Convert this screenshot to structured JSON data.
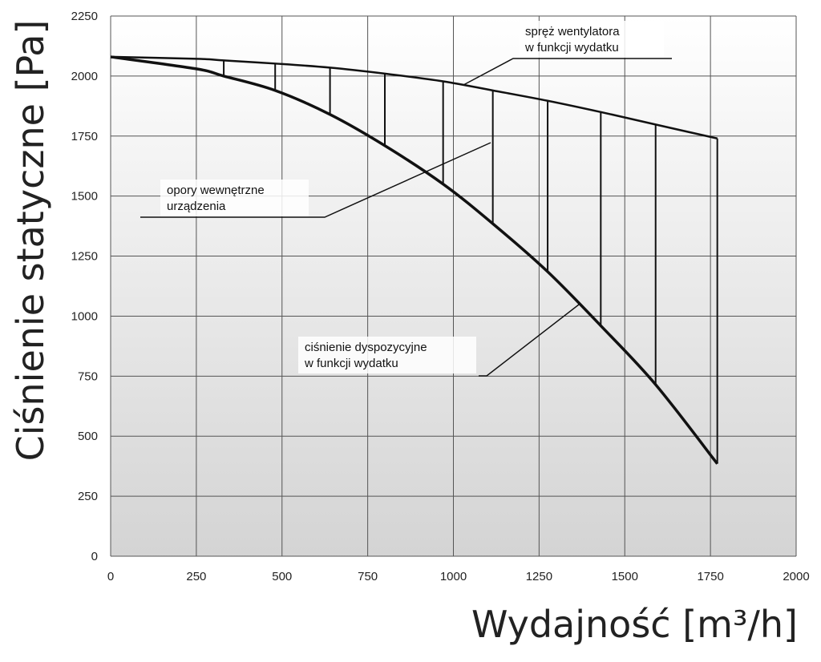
{
  "chart_data": {
    "type": "line",
    "xlabel": "Wydajność [m³/h]",
    "ylabel": "Ciśnienie statyczne [Pa]",
    "xlim": [
      0,
      2000
    ],
    "ylim": [
      0,
      2250
    ],
    "x_ticks": [
      "0",
      "250",
      "500",
      "750",
      "1000",
      "1250",
      "1500",
      "1750",
      "2000"
    ],
    "y_ticks": [
      "0",
      "250",
      "500",
      "750",
      "1000",
      "1250",
      "1500",
      "1750",
      "2000",
      "2250"
    ],
    "grid": true,
    "series": [
      {
        "name": "spręż wentylatora w funkcji wydatku",
        "x": [
          0,
          250,
          330,
          480,
          640,
          800,
          970,
          1115,
          1275,
          1430,
          1590,
          1770
        ],
        "y": [
          2080,
          2072,
          2065,
          2052,
          2035,
          2010,
          1978,
          1940,
          1897,
          1850,
          1798,
          1740
        ]
      },
      {
        "name": "ciśnienie dyspozycyjne w funkcji wydatku",
        "x": [
          0,
          250,
          330,
          480,
          640,
          800,
          970,
          1115,
          1275,
          1430,
          1590,
          1770
        ],
        "y": [
          2080,
          2030,
          2000,
          1940,
          1840,
          1710,
          1550,
          1385,
          1185,
          960,
          715,
          385
        ]
      }
    ],
    "vertical_lines_x": [
      330,
      480,
      640,
      800,
      970,
      1115,
      1275,
      1430,
      1590,
      1770
    ],
    "annotations": [
      {
        "label_lines": [
          "spręż wentylatora",
          "w funkcji wydatku"
        ]
      },
      {
        "label_lines": [
          "opory wewnętrzne",
          "urządzenia"
        ]
      },
      {
        "label_lines": [
          "ciśnienie dyspozycyjne",
          "w funkcji wydatku"
        ]
      }
    ]
  }
}
